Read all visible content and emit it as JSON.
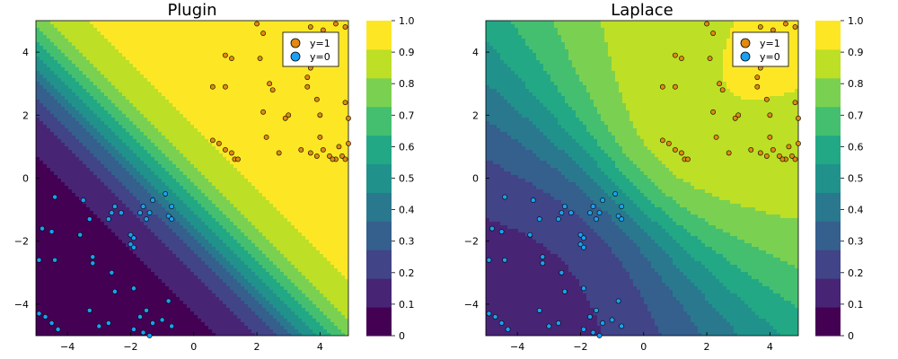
{
  "colors": {
    "y1_marker": "#e18a0f",
    "y0_marker": "#1aa0f0",
    "levels": [
      "#440154",
      "#482475",
      "#414487",
      "#355f8d",
      "#2a788e",
      "#21918c",
      "#22a884",
      "#44bf70",
      "#7ad151",
      "#bddf26",
      "#fde725"
    ]
  },
  "chart_data": [
    {
      "type": "contour",
      "title": "Plugin",
      "model": "linear-logistic",
      "xlim": [
        -5,
        4.9
      ],
      "ylim": [
        -5,
        5
      ],
      "xticks": [
        -4,
        -2,
        0,
        2,
        4
      ],
      "yticks": [
        -4,
        -2,
        0,
        2,
        4
      ],
      "colorbar": {
        "levels": [
          0,
          0.1,
          0.2,
          0.3,
          0.4,
          0.5,
          0.6,
          0.7,
          0.8,
          0.9,
          1.0
        ],
        "labels": [
          "0",
          "0.1",
          "0.2",
          "0.3",
          "0.4",
          "0.5",
          "0.6",
          "0.7",
          "0.8",
          "0.9",
          "1.0"
        ]
      },
      "legend": {
        "position": "top-right",
        "entries": [
          "y=1",
          "y=0"
        ]
      }
    },
    {
      "type": "contour",
      "title": "Laplace",
      "model": "bayesian-logistic-laplace",
      "xlim": [
        -5,
        4.9
      ],
      "ylim": [
        -5,
        5
      ],
      "xticks": [
        -4,
        -2,
        0,
        2,
        4
      ],
      "yticks": [
        -4,
        -2,
        0,
        2,
        4
      ],
      "colorbar": {
        "levels": [
          0,
          0.1,
          0.2,
          0.3,
          0.4,
          0.5,
          0.6,
          0.7,
          0.8,
          0.9,
          1.0
        ],
        "labels": [
          "0",
          "0.1",
          "0.2",
          "0.3",
          "0.4",
          "0.5",
          "0.6",
          "0.7",
          "0.8",
          "0.9",
          "1.0"
        ]
      },
      "legend": {
        "position": "top-right",
        "entries": [
          "y=1",
          "y=0"
        ]
      }
    }
  ],
  "points": {
    "y1": [
      [
        2.0,
        4.9
      ],
      [
        2.2,
        4.6
      ],
      [
        3.7,
        4.8
      ],
      [
        4.5,
        4.9
      ],
      [
        4.8,
        4.8
      ],
      [
        3.0,
        4.3
      ],
      [
        3.3,
        4.4
      ],
      [
        4.1,
        4.7
      ],
      [
        1.0,
        3.9
      ],
      [
        1.2,
        3.8
      ],
      [
        2.1,
        3.8
      ],
      [
        4.0,
        3.8
      ],
      [
        3.7,
        3.5
      ],
      [
        3.6,
        3.2
      ],
      [
        0.6,
        2.9
      ],
      [
        1.0,
        2.9
      ],
      [
        2.4,
        3.0
      ],
      [
        2.5,
        2.8
      ],
      [
        3.6,
        2.9
      ],
      [
        3.9,
        2.5
      ],
      [
        3.0,
        2.0
      ],
      [
        2.9,
        1.9
      ],
      [
        4.0,
        2.0
      ],
      [
        4.8,
        2.4
      ],
      [
        2.2,
        2.1
      ],
      [
        4.9,
        1.9
      ],
      [
        0.6,
        1.2
      ],
      [
        0.8,
        1.1
      ],
      [
        1.0,
        0.9
      ],
      [
        1.2,
        0.8
      ],
      [
        1.3,
        0.6
      ],
      [
        1.4,
        0.6
      ],
      [
        2.3,
        1.3
      ],
      [
        2.7,
        0.8
      ],
      [
        3.4,
        0.9
      ],
      [
        3.7,
        0.8
      ],
      [
        4.0,
        1.3
      ],
      [
        4.1,
        0.9
      ],
      [
        4.3,
        0.7
      ],
      [
        4.5,
        0.6
      ],
      [
        4.6,
        1.0
      ],
      [
        4.7,
        0.7
      ],
      [
        4.8,
        0.6
      ],
      [
        4.9,
        1.1
      ],
      [
        4.4,
        0.6
      ],
      [
        3.9,
        0.7
      ]
    ],
    "y0": [
      [
        -4.4,
        -0.6
      ],
      [
        -3.5,
        -0.7
      ],
      [
        -2.5,
        -0.9
      ],
      [
        -2.3,
        -1.1
      ],
      [
        -1.6,
        -0.9
      ],
      [
        -1.3,
        -0.7
      ],
      [
        -0.9,
        -0.5
      ],
      [
        -0.7,
        -0.9
      ],
      [
        -2.6,
        -1.1
      ],
      [
        -2.7,
        -1.3
      ],
      [
        -3.3,
        -1.3
      ],
      [
        -1.7,
        -1.1
      ],
      [
        -1.4,
        -1.1
      ],
      [
        -1.5,
        -1.3
      ],
      [
        -0.8,
        -1.2
      ],
      [
        -0.7,
        -1.3
      ],
      [
        -4.8,
        -1.6
      ],
      [
        -4.5,
        -1.7
      ],
      [
        -3.6,
        -1.8
      ],
      [
        -2.0,
        -1.8
      ],
      [
        -1.9,
        -1.9
      ],
      [
        -2.0,
        -2.1
      ],
      [
        -1.9,
        -2.2
      ],
      [
        -3.2,
        -2.5
      ],
      [
        -3.2,
        -2.7
      ],
      [
        -4.9,
        -2.6
      ],
      [
        -4.4,
        -2.6
      ],
      [
        -2.6,
        -3.0
      ],
      [
        -1.9,
        -3.5
      ],
      [
        -2.5,
        -3.6
      ],
      [
        -3.3,
        -4.2
      ],
      [
        -0.8,
        -3.9
      ],
      [
        -1.5,
        -4.2
      ],
      [
        -4.9,
        -4.3
      ],
      [
        -4.7,
        -4.4
      ],
      [
        -4.5,
        -4.6
      ],
      [
        -4.3,
        -4.8
      ],
      [
        -3.0,
        -4.7
      ],
      [
        -2.7,
        -4.6
      ],
      [
        -1.7,
        -4.4
      ],
      [
        -1.3,
        -4.6
      ],
      [
        -1.0,
        -4.5
      ],
      [
        -0.7,
        -4.7
      ],
      [
        -1.9,
        -4.8
      ],
      [
        -1.6,
        -4.9
      ],
      [
        -1.4,
        -5.0
      ]
    ]
  }
}
